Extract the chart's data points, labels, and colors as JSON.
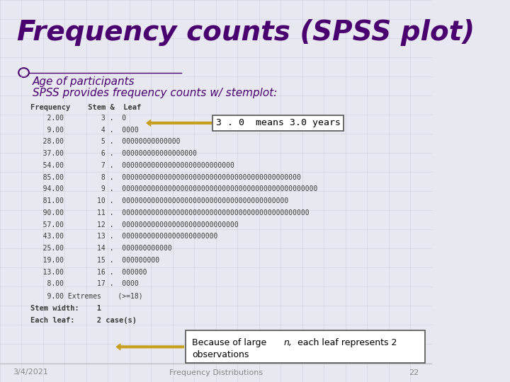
{
  "bg_color": "#e8e8f0",
  "title": "Frequency counts (SPSS plot)",
  "title_color": "#4b0070",
  "subtitle1": "Age of participants",
  "subtitle2": "SPSS provides frequency counts w/ stemplot:",
  "subtitle_color": "#4b0070",
  "table_header": "Frequency    Stem &  Leaf",
  "table_color": "#3a3a3a",
  "rows": [
    "    2.00         3 .  0",
    "    9.00         4 .  0000",
    "   28.00         5 .  00000000000000",
    "   37.00         6 .  000000000000000000",
    "   54.00         7 .  000000000000000000000000000",
    "   85.00         8 .  0000000000000000000000000000000000000000000",
    "   94.00         9 .  00000000000000000000000000000000000000000000000",
    "   81.00        10 .  0000000000000000000000000000000000000000",
    "   90.00        11 .  000000000000000000000000000000000000000000000",
    "   57.00        12 .  0000000000000000000000000000",
    "   43.00        13 .  00000000000000000000000",
    "   25.00        14 .  000000000000",
    "   19.00        15 .  000000000",
    "   13.00        16 .  000000",
    "    8.00        17 .  0000",
    "    9.00 Extremes    (>=18)"
  ],
  "footer1": "Stem width:    1",
  "footer2": "Each leaf:     2 case(s)",
  "annotation1_text": "3 . 0  means 3.0 years",
  "arrow_color": "#c8a020",
  "bottom_left": "3/4/2021",
  "bottom_center": "Frequency Distributions",
  "bottom_right": "22",
  "bottom_color": "#888888",
  "grid_color": "#c0c0d0"
}
